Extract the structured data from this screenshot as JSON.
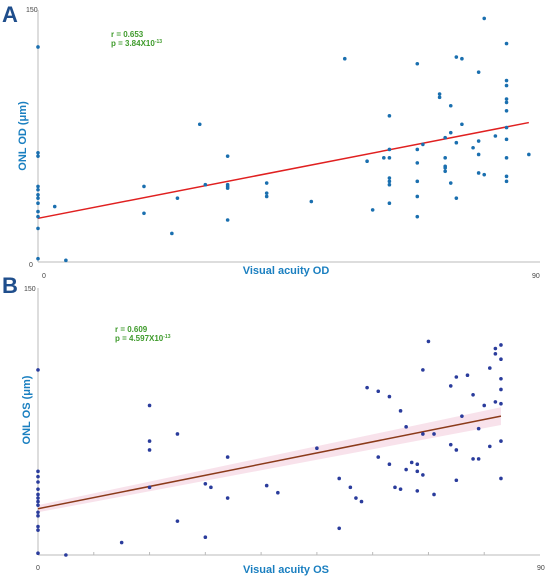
{
  "chart_data": [
    {
      "panel": "A",
      "type": "scatter",
      "xlabel": "Visual acuity OD",
      "ylabel": "ONL OD (μm)",
      "xlim": [
        0,
        90
      ],
      "ylim": [
        0,
        150
      ],
      "x_ticks": [
        "0",
        "90"
      ],
      "y_ticks": [
        "0",
        "150"
      ],
      "point_color": "#1a6faf",
      "line_color": "#e02020",
      "annotation": {
        "r": "r = 0.653",
        "p_base": "p = 3.84X10",
        "p_exp": "-13"
      },
      "fit_line": {
        "x": [
          0,
          88
        ],
        "y": [
          26,
          83
        ]
      },
      "points": [
        [
          0,
          128
        ],
        [
          0,
          65
        ],
        [
          0,
          63
        ],
        [
          0,
          45
        ],
        [
          0,
          43
        ],
        [
          0,
          40
        ],
        [
          0,
          38
        ],
        [
          0,
          35
        ],
        [
          0,
          30
        ],
        [
          0,
          27
        ],
        [
          0,
          20
        ],
        [
          0,
          2
        ],
        [
          3,
          33
        ],
        [
          5,
          1
        ],
        [
          19,
          45
        ],
        [
          19,
          29
        ],
        [
          24,
          17
        ],
        [
          25,
          38
        ],
        [
          29,
          82
        ],
        [
          30,
          46
        ],
        [
          34,
          63
        ],
        [
          34,
          46
        ],
        [
          34,
          45
        ],
        [
          34,
          44
        ],
        [
          34,
          25
        ],
        [
          41,
          47
        ],
        [
          41,
          41
        ],
        [
          41,
          39
        ],
        [
          49,
          36
        ],
        [
          55,
          121
        ],
        [
          59,
          60
        ],
        [
          60,
          31
        ],
        [
          62,
          62
        ],
        [
          63,
          87
        ],
        [
          63,
          67
        ],
        [
          63,
          62
        ],
        [
          63,
          50
        ],
        [
          63,
          48
        ],
        [
          63,
          46
        ],
        [
          63,
          35
        ],
        [
          68,
          118
        ],
        [
          68,
          67
        ],
        [
          68,
          59
        ],
        [
          68,
          48
        ],
        [
          68,
          39
        ],
        [
          68,
          27
        ],
        [
          69,
          70
        ],
        [
          72,
          98
        ],
        [
          72,
          100
        ],
        [
          73,
          74
        ],
        [
          73,
          62
        ],
        [
          73,
          56
        ],
        [
          73,
          54
        ],
        [
          73,
          57
        ],
        [
          74,
          93
        ],
        [
          74,
          77
        ],
        [
          74,
          47
        ],
        [
          75,
          71
        ],
        [
          75,
          38
        ],
        [
          75,
          122
        ],
        [
          76,
          121
        ],
        [
          76,
          82
        ],
        [
          78,
          68
        ],
        [
          79,
          113
        ],
        [
          79,
          72
        ],
        [
          79,
          64
        ],
        [
          79,
          53
        ],
        [
          80,
          145
        ],
        [
          80,
          52
        ],
        [
          82,
          75
        ],
        [
          84,
          130
        ],
        [
          84,
          108
        ],
        [
          84,
          105
        ],
        [
          84,
          97
        ],
        [
          84,
          95
        ],
        [
          84,
          90
        ],
        [
          84,
          80
        ],
        [
          84,
          73
        ],
        [
          84,
          62
        ],
        [
          84,
          51
        ],
        [
          84,
          48
        ],
        [
          88,
          64
        ]
      ]
    },
    {
      "panel": "B",
      "type": "scatter",
      "xlabel": "Visual acuity OS",
      "ylabel": "ONL OS (μm)",
      "xlim": [
        0,
        90
      ],
      "ylim": [
        0,
        150
      ],
      "x_ticks": [
        "0",
        "90"
      ],
      "y_ticks": [
        "150",
        "0"
      ],
      "point_color": "#2a3c9c",
      "line_color": "#8b3a1a",
      "band_color": "#f5d6e2",
      "annotation": {
        "r": "r = 0.609",
        "p_base": "p = 4.597X10",
        "p_exp": "-13"
      },
      "fit_line": {
        "x": [
          0,
          83
        ],
        "y": [
          26,
          78
        ]
      },
      "points": [
        [
          0,
          104
        ],
        [
          0,
          47
        ],
        [
          0,
          44
        ],
        [
          0,
          41
        ],
        [
          0,
          37
        ],
        [
          0,
          34
        ],
        [
          0,
          32
        ],
        [
          0,
          30
        ],
        [
          0,
          28
        ],
        [
          0,
          24
        ],
        [
          0,
          22
        ],
        [
          0,
          16
        ],
        [
          0,
          14
        ],
        [
          0,
          1
        ],
        [
          5,
          0
        ],
        [
          15,
          7
        ],
        [
          20,
          84
        ],
        [
          20,
          59
        ],
        [
          20,
          64
        ],
        [
          20,
          38
        ],
        [
          25,
          19
        ],
        [
          25,
          68
        ],
        [
          30,
          40
        ],
        [
          30,
          10
        ],
        [
          31,
          38
        ],
        [
          34,
          32
        ],
        [
          34,
          55
        ],
        [
          41,
          39
        ],
        [
          43,
          35
        ],
        [
          50,
          60
        ],
        [
          54,
          15
        ],
        [
          54,
          43
        ],
        [
          56,
          38
        ],
        [
          57,
          32
        ],
        [
          58,
          30
        ],
        [
          59,
          94
        ],
        [
          61,
          92
        ],
        [
          61,
          55
        ],
        [
          63,
          51
        ],
        [
          63,
          89
        ],
        [
          64,
          38
        ],
        [
          65,
          37
        ],
        [
          65,
          81
        ],
        [
          66,
          72
        ],
        [
          66,
          48
        ],
        [
          67,
          52
        ],
        [
          68,
          51
        ],
        [
          68,
          36
        ],
        [
          68,
          47
        ],
        [
          69,
          45
        ],
        [
          69,
          68
        ],
        [
          69,
          104
        ],
        [
          70,
          120
        ],
        [
          71,
          68
        ],
        [
          71,
          34
        ],
        [
          74,
          95
        ],
        [
          74,
          62
        ],
        [
          75,
          59
        ],
        [
          75,
          100
        ],
        [
          75,
          42
        ],
        [
          76,
          78
        ],
        [
          77,
          101
        ],
        [
          78,
          54
        ],
        [
          78,
          90
        ],
        [
          79,
          71
        ],
        [
          79,
          54
        ],
        [
          80,
          84
        ],
        [
          81,
          61
        ],
        [
          81,
          105
        ],
        [
          82,
          86
        ],
        [
          82,
          116
        ],
        [
          82,
          113
        ],
        [
          83,
          110
        ],
        [
          83,
          93
        ],
        [
          83,
          85
        ],
        [
          83,
          99
        ],
        [
          83,
          118
        ],
        [
          83,
          64
        ],
        [
          83,
          43
        ]
      ]
    }
  ]
}
